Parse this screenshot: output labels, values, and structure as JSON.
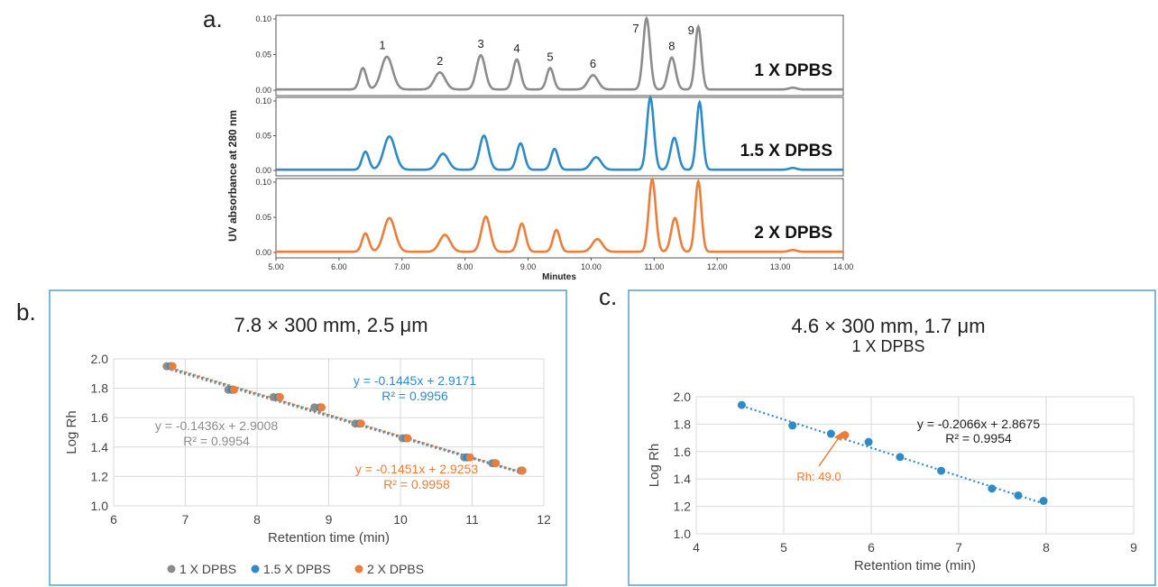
{
  "panel_a": {
    "letter": "a.",
    "ylabel": "UV absorbance at 280 nm",
    "xlabel": "Minutes",
    "x_ticks": [
      "5.00",
      "6.00",
      "7.00",
      "8.00",
      "9.00",
      "10.00",
      "11.00",
      "12.00",
      "13.00",
      "14.00"
    ],
    "y_ticks": [
      "0.00",
      "0.05",
      "0.10"
    ],
    "traces": [
      {
        "label": "1 X DPBS",
        "color": "#8c8c8c"
      },
      {
        "label": "1.5 X DPBS",
        "color": "#2e8bc6"
      },
      {
        "label": "2 X DPBS",
        "color": "#ea7e3a"
      }
    ],
    "peak_labels": [
      "1",
      "2",
      "3",
      "4",
      "5",
      "6",
      "7",
      "8",
      "9"
    ]
  },
  "panel_b": {
    "letter": "b.",
    "title": "7.8 × 300 mm, 2.5 μm",
    "eq_blue": "y = -0.1445x + 2.9171",
    "r2_blue": "R² = 0.9956",
    "eq_gray": "y = -0.1436x + 2.9008",
    "r2_gray": "R² = 0.9954",
    "eq_orange": "y = -0.1451x + 2.9253",
    "r2_orange": "R² = 0.9958",
    "legend": [
      "1 X DPBS",
      "1.5 X DPBS",
      "2 X DPBS"
    ]
  },
  "panel_c": {
    "letter": "c.",
    "title": "4.6 × 300 mm, 1.7 μm",
    "subtitle": "1 X DPBS",
    "eq": "y = -0.2066x + 2.8675",
    "r2": "R² = 0.9954",
    "annotation": "Rh: 49.0"
  },
  "chart_data": [
    {
      "type": "line",
      "panel": "a",
      "title": "",
      "xlabel": "Minutes",
      "ylabel": "UV absorbance at 280 nm",
      "xlim": [
        5,
        14
      ],
      "ylim": [
        0,
        0.1
      ],
      "series": [
        {
          "name": "1 X DPBS",
          "peaks_x": [
            6.38,
            6.76,
            7.6,
            8.25,
            8.82,
            9.35,
            10.03,
            10.88,
            11.28,
            11.7
          ],
          "peaks_y": [
            0.03,
            0.046,
            0.024,
            0.048,
            0.042,
            0.03,
            0.02,
            0.1,
            0.045,
            0.088
          ]
        },
        {
          "name": "1.5 X DPBS",
          "peaks_x": [
            6.42,
            6.8,
            7.65,
            8.3,
            8.88,
            9.42,
            10.08,
            10.94,
            11.32,
            11.72
          ],
          "peaks_y": [
            0.026,
            0.048,
            0.023,
            0.049,
            0.038,
            0.03,
            0.018,
            0.104,
            0.046,
            0.097
          ]
        },
        {
          "name": "2 X DPBS",
          "peaks_x": [
            6.42,
            6.8,
            7.68,
            8.33,
            8.9,
            9.45,
            10.1,
            10.97,
            11.33,
            11.7
          ],
          "peaks_y": [
            0.026,
            0.048,
            0.024,
            0.05,
            0.04,
            0.031,
            0.018,
            0.103,
            0.048,
            0.1
          ]
        }
      ]
    },
    {
      "type": "scatter",
      "panel": "b",
      "title": "7.8 × 300 mm, 2.5 μm",
      "xlabel": "Retention time (min)",
      "ylabel": "Log Rh",
      "xlim": [
        6,
        12
      ],
      "ylim": [
        1.0,
        2.0
      ],
      "x_ticks": [
        6,
        7,
        8,
        9,
        10,
        11,
        12
      ],
      "y_ticks": [
        1.0,
        1.2,
        1.4,
        1.6,
        1.8,
        2.0
      ],
      "series": [
        {
          "name": "1 X DPBS",
          "color": "#8c8c8c",
          "slope": -0.1436,
          "intercept": 2.9008,
          "x": [
            6.74,
            7.6,
            8.23,
            8.8,
            9.37,
            10.03,
            10.89,
            11.28,
            11.68
          ],
          "y": [
            1.95,
            1.79,
            1.74,
            1.67,
            1.56,
            1.46,
            1.33,
            1.29,
            1.24
          ]
        },
        {
          "name": "1.5 X DPBS",
          "color": "#2e8bc6",
          "slope": -0.1445,
          "intercept": 2.9171,
          "x": [
            6.8,
            7.65,
            8.3,
            8.88,
            9.43,
            10.08,
            10.93,
            11.32,
            11.7
          ],
          "y": [
            1.95,
            1.79,
            1.74,
            1.67,
            1.56,
            1.46,
            1.33,
            1.29,
            1.24
          ]
        },
        {
          "name": "2 X DPBS",
          "color": "#ea7e3a",
          "slope": -0.1451,
          "intercept": 2.9253,
          "x": [
            6.82,
            7.68,
            8.32,
            8.9,
            9.45,
            10.1,
            10.97,
            11.33,
            11.7
          ],
          "y": [
            1.95,
            1.79,
            1.74,
            1.67,
            1.56,
            1.46,
            1.33,
            1.29,
            1.24
          ]
        }
      ]
    },
    {
      "type": "scatter",
      "panel": "c",
      "title": "4.6 × 300 mm, 1.7 μm",
      "subtitle": "1 X DPBS",
      "xlabel": "Retention time (min)",
      "ylabel": "Log Rh",
      "xlim": [
        4,
        9
      ],
      "ylim": [
        1.0,
        2.0
      ],
      "x_ticks": [
        4,
        5,
        6,
        7,
        8,
        9
      ],
      "y_ticks": [
        1.0,
        1.2,
        1.4,
        1.6,
        1.8,
        2.0
      ],
      "series": [
        {
          "name": "1 X DPBS",
          "color": "#2e8bc6",
          "slope": -0.2066,
          "intercept": 2.8675,
          "x": [
            4.52,
            5.1,
            5.54,
            5.97,
            6.33,
            6.8,
            7.38,
            7.68,
            7.97
          ],
          "y": [
            1.94,
            1.79,
            1.73,
            1.67,
            1.56,
            1.46,
            1.33,
            1.28,
            1.24
          ]
        },
        {
          "name": "",
          "color": "#ea7e3a",
          "x": [
            5.7
          ],
          "y": [
            1.72
          ]
        }
      ]
    }
  ]
}
